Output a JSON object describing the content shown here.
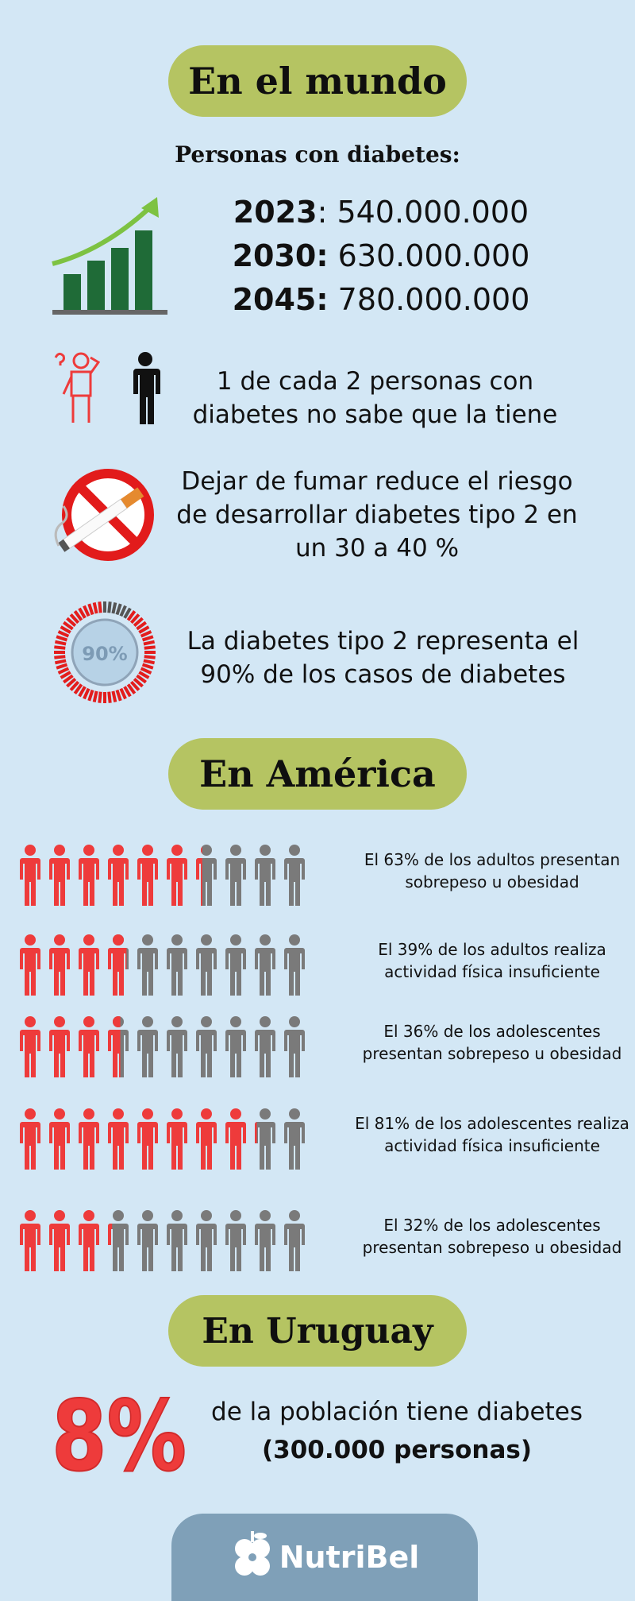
{
  "world": {
    "heading": "En el mundo",
    "subtitle": "Personas con diabetes:",
    "stats": [
      {
        "year": "2023",
        "sep": ": ",
        "value": "540.000.000"
      },
      {
        "year": "2030:",
        "sep": " ",
        "value": "630.000.000"
      },
      {
        "year": "2045:",
        "sep": " ",
        "value": "780.000.000"
      }
    ],
    "fact_unaware": "1 de cada 2 personas con diabetes no sabe que la tiene",
    "fact_smoking": "Dejar de fumar reduce el riesgo de desarrollar diabetes tipo 2 en un 30 a 40 %",
    "fact_type2": "La diabetes tipo 2 representa el 90% de los casos de diabetes",
    "gauge_label": "90%",
    "gauge_fraction": 0.9
  },
  "america": {
    "heading": "En América",
    "rows": [
      {
        "text": "El 63% de los adultos presentan sobrepeso u obesidad",
        "red": 6.3
      },
      {
        "text": "El 39% de los adultos realiza actividad física insuficiente",
        "red": 3.9
      },
      {
        "text": "El 36% de los adolescentes presentan sobrepeso u obesidad",
        "red": 3.6
      },
      {
        "text": "El 81% de los adolescentes realiza actividad física insuficiente",
        "red": 8.1
      },
      {
        "text": "El 32% de los adolescentes presentan sobrepeso u obesidad",
        "red": 3.2
      }
    ]
  },
  "uruguay": {
    "heading": "En Uruguay",
    "big_percent": "8%",
    "line1": "de la población tiene diabetes",
    "line2": "(300.000 personas)"
  },
  "footer": {
    "brand": "NutriBel"
  },
  "colors": {
    "red": "#ee3b3b",
    "gray": "#7a7a7a",
    "pill": "#b5c462",
    "background": "#d3e7f5"
  }
}
